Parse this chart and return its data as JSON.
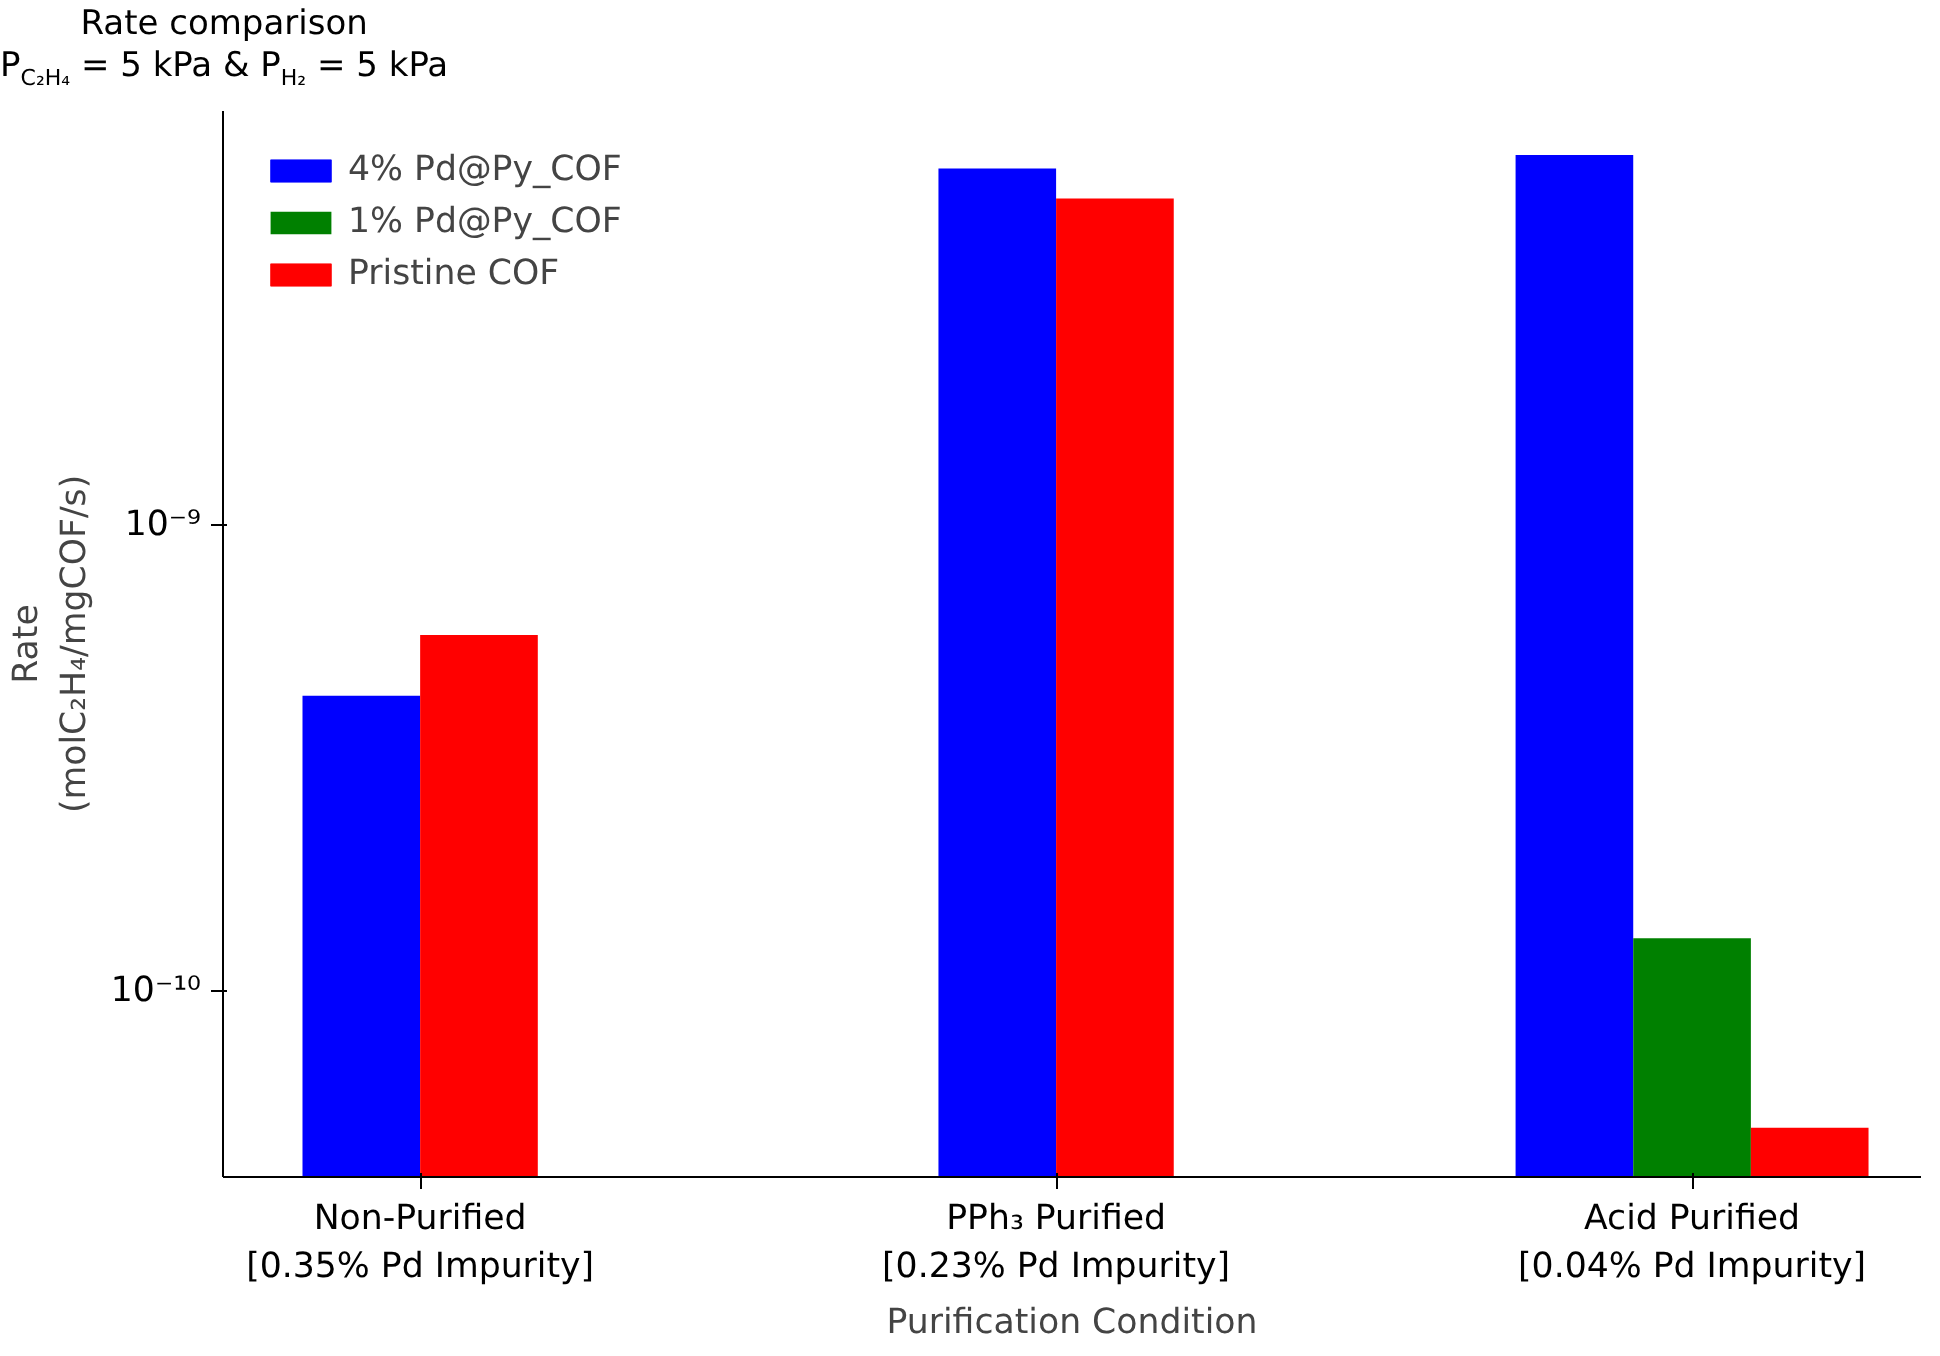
{
  "chart_data": {
    "type": "bar",
    "title": "Rate comparison",
    "subtitle": "P$_{C₂H₄}$ = 5 kPa & P$_{H₂}$ = 5 kPa",
    "xlabel": "Purification Condition",
    "ylabel": "Rate\n(molC₂H₄/mgCOF/s)",
    "categories": [
      "Non-Purified\n[0.35% Pd Impurity]",
      "PPh₃ Purified\n[0.23% Pd Impurity]",
      "Acid Purified\n[0.04% Pd Impurity]"
    ],
    "series": [
      {
        "name": "4% Pd@Py_COF",
        "color": "#0000ff",
        "values": [
          4.3e-10,
          5.8e-09,
          6.2e-09
        ]
      },
      {
        "name": "1% Pd@Py_COF",
        "color": "#008000",
        "values": [
          null,
          null,
          1.3e-10
        ]
      },
      {
        "name": "Pristine COF",
        "color": "#ff0000",
        "values": [
          5.8e-10,
          5e-09,
          5.1e-11
        ]
      }
    ],
    "log": true,
    "ylim": [
      4e-11,
      7.7e-09
    ],
    "yticks": [
      {
        "value": 1e-10,
        "label": "10⁻¹⁰"
      },
      {
        "value": 1e-09,
        "label": "10⁻⁹"
      }
    ],
    "grid": false,
    "legend": "top left"
  }
}
